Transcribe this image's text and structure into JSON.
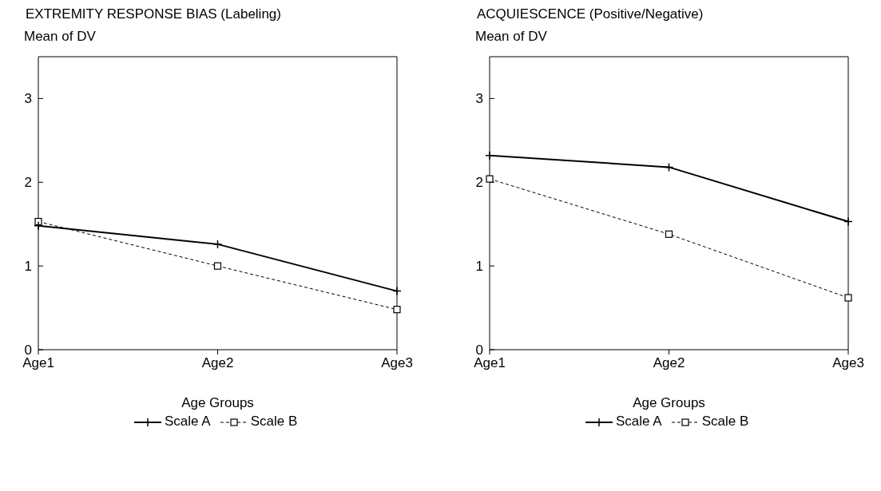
{
  "chart_data": [
    {
      "type": "line",
      "title": "EXTREMITY RESPONSE BIAS (Labeling)",
      "ylabel": "Mean of DV",
      "xlabel": "Age Groups",
      "categories": [
        "Age1",
        "Age2",
        "Age3"
      ],
      "ylim": [
        0,
        3.5
      ],
      "yticks": [
        0,
        1,
        2,
        3
      ],
      "grid": false,
      "legend": "bottom",
      "series": [
        {
          "name": "Scale A",
          "color": "#000000",
          "values": [
            1.48,
            1.26,
            0.7
          ],
          "marker": "cross",
          "line_style": "solid"
        },
        {
          "name": "Scale B",
          "color": "#000000",
          "values": [
            1.53,
            1.0,
            0.48
          ],
          "marker": "square",
          "line_style": "dashed"
        }
      ]
    },
    {
      "type": "line",
      "title": "ACQUIESCENCE (Positive/Negative)",
      "ylabel": "Mean of DV",
      "xlabel": "Age Groups",
      "categories": [
        "Age1",
        "Age2",
        "Age3"
      ],
      "ylim": [
        0,
        3.5
      ],
      "yticks": [
        0,
        1,
        2,
        3
      ],
      "grid": false,
      "legend": "bottom",
      "series": [
        {
          "name": "Scale A",
          "color": "#000000",
          "values": [
            2.32,
            2.18,
            1.53
          ],
          "marker": "cross",
          "line_style": "solid"
        },
        {
          "name": "Scale B",
          "color": "#000000",
          "values": [
            2.04,
            1.38,
            0.62
          ],
          "marker": "square",
          "line_style": "dashed"
        }
      ]
    }
  ]
}
